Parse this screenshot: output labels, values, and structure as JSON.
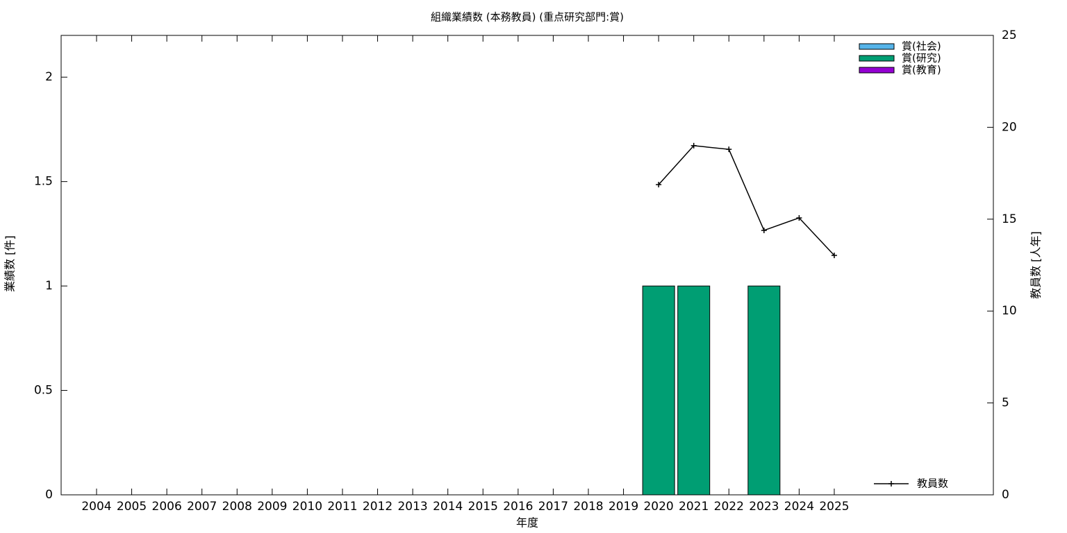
{
  "chart_data": {
    "type": "bar",
    "stacked": true,
    "title": "組織業績数 (本務教員) (重点研究部門:賞)",
    "xlabel": "年度",
    "ylabel": "業績数 [件]",
    "y2label": "教員数 [人年]",
    "categories": [
      "2004",
      "2005",
      "2006",
      "2007",
      "2008",
      "2009",
      "2010",
      "2011",
      "2012",
      "2013",
      "2014",
      "2015",
      "2016",
      "2017",
      "2018",
      "2019",
      "2020",
      "2021",
      "2022",
      "2023",
      "2024",
      "2025"
    ],
    "ylim": [
      0,
      2.2
    ],
    "yticks": [
      0,
      0.5,
      1,
      1.5,
      2
    ],
    "y2lim": [
      0,
      25
    ],
    "y2ticks": [
      0,
      5,
      10,
      15,
      20,
      25
    ],
    "legend": "top right",
    "series": [
      {
        "name": "賞(社会)",
        "color": "#56b4e9",
        "values": [
          0,
          0,
          0,
          0,
          0,
          0,
          0,
          0,
          0,
          0,
          0,
          0,
          0,
          0,
          0,
          0,
          0,
          0,
          0,
          0,
          0,
          0
        ]
      },
      {
        "name": "賞(研究)",
        "color": "#009e73",
        "values": [
          0,
          0,
          0,
          0,
          0,
          0,
          0,
          0,
          0,
          0,
          0,
          0,
          0,
          0,
          0,
          0,
          1,
          1,
          0,
          1,
          0,
          0
        ]
      },
      {
        "name": "賞(教育)",
        "color": "#9400d3",
        "values": [
          0,
          0,
          0,
          0,
          0,
          0,
          0,
          0,
          0,
          0,
          0,
          0,
          0,
          0,
          0,
          0,
          0,
          0,
          0,
          0,
          0,
          0
        ]
      },
      {
        "name": "教員数",
        "color": "#000000",
        "type": "line",
        "axis": "y2",
        "values": [
          null,
          null,
          null,
          null,
          null,
          null,
          null,
          null,
          null,
          null,
          null,
          null,
          null,
          null,
          null,
          null,
          16.88,
          19.0,
          18.8,
          14.39,
          15.07,
          13.03
        ]
      }
    ]
  }
}
